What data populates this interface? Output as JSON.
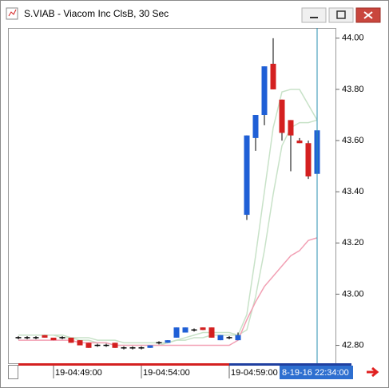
{
  "window": {
    "title": "S.VIAB - Viacom Inc ClsB, 30 Sec"
  },
  "chart_data": {
    "type": "candlestick",
    "categories": [
      null,
      null,
      null,
      null,
      "19-04:49:00",
      null,
      null,
      null,
      null,
      null,
      null,
      null,
      null,
      null,
      "19-04:54:00",
      null,
      null,
      null,
      null,
      null,
      null,
      null,
      null,
      null,
      "19-04:59:00",
      null,
      null,
      null,
      null,
      null,
      null,
      null,
      null,
      null,
      null
    ],
    "cursor_label": "8-19-16 22:34:00",
    "up_color": "#1f5fd6",
    "down_color": "#d42020",
    "flat_color": "#000000",
    "cursor_color": "#2a8fb0",
    "open": [
      42.83,
      42.83,
      42.83,
      42.84,
      42.83,
      42.83,
      42.83,
      42.82,
      42.81,
      42.8,
      42.8,
      42.81,
      42.79,
      42.79,
      42.79,
      42.79,
      42.81,
      42.81,
      42.83,
      42.85,
      42.86,
      42.87,
      42.87,
      42.82,
      42.83,
      42.82,
      43.31,
      43.61,
      43.7,
      43.9,
      43.76,
      43.68,
      43.6,
      43.59,
      43.47
    ],
    "high": [
      42.83,
      42.83,
      42.83,
      42.84,
      42.83,
      42.83,
      42.83,
      42.82,
      42.81,
      42.8,
      42.8,
      42.81,
      42.79,
      42.79,
      42.79,
      42.8,
      42.81,
      42.82,
      42.87,
      42.87,
      42.86,
      42.87,
      42.87,
      42.84,
      42.83,
      42.85,
      43.62,
      43.7,
      43.89,
      44.0,
      43.76,
      43.68,
      43.61,
      43.6,
      43.64
    ],
    "low": [
      42.83,
      42.83,
      42.83,
      42.83,
      42.82,
      42.83,
      42.81,
      42.8,
      42.79,
      42.8,
      42.8,
      42.79,
      42.79,
      42.79,
      42.79,
      42.79,
      42.81,
      42.81,
      42.83,
      42.85,
      42.86,
      42.86,
      42.83,
      42.82,
      42.83,
      42.82,
      43.29,
      43.56,
      43.66,
      43.8,
      43.6,
      43.48,
      43.59,
      43.45,
      43.45
    ],
    "close": [
      42.83,
      42.83,
      42.83,
      42.83,
      42.82,
      42.83,
      42.81,
      42.8,
      42.79,
      42.8,
      42.8,
      42.79,
      42.79,
      42.79,
      42.79,
      42.8,
      42.81,
      42.82,
      42.87,
      42.87,
      42.86,
      42.86,
      42.83,
      42.84,
      42.83,
      42.84,
      43.62,
      43.7,
      43.89,
      43.8,
      43.63,
      43.62,
      43.59,
      43.46,
      43.64
    ],
    "overlays": [
      {
        "color": "#c8e2c8",
        "values": [
          42.84,
          42.84,
          42.84,
          42.84,
          42.84,
          42.83,
          42.83,
          42.82,
          42.82,
          42.81,
          42.81,
          42.8,
          42.8,
          42.8,
          42.8,
          42.8,
          42.8,
          42.81,
          42.82,
          42.83,
          42.84,
          42.85,
          42.85,
          42.85,
          42.85,
          42.84,
          42.92,
          43.15,
          43.4,
          43.65,
          43.79,
          43.8,
          43.8,
          43.74,
          43.68
        ]
      },
      {
        "color": "#c8e2c8",
        "values": [
          42.84,
          42.84,
          42.84,
          42.84,
          42.84,
          42.84,
          42.83,
          42.83,
          42.83,
          42.82,
          42.82,
          42.82,
          42.81,
          42.81,
          42.81,
          42.81,
          42.81,
          42.81,
          42.82,
          42.82,
          42.83,
          42.83,
          42.84,
          42.84,
          42.84,
          42.84,
          42.86,
          42.99,
          43.17,
          43.39,
          43.58,
          43.65,
          43.67,
          43.67,
          43.68
        ]
      },
      {
        "color": "#f2a0b4",
        "values": [
          42.82,
          42.82,
          42.82,
          42.82,
          42.82,
          42.82,
          42.82,
          42.81,
          42.81,
          42.81,
          42.81,
          42.8,
          42.8,
          42.8,
          42.8,
          42.8,
          42.8,
          42.8,
          42.8,
          42.8,
          42.8,
          42.8,
          42.8,
          42.8,
          42.8,
          42.82,
          42.9,
          42.97,
          43.03,
          43.07,
          43.11,
          43.15,
          43.17,
          43.21,
          43.22
        ]
      }
    ],
    "ylim": [
      42.73,
      44.04
    ],
    "yticks": [
      {
        "value": 42.8,
        "label": "42.80"
      },
      {
        "value": 43.0,
        "label": "43.00"
      },
      {
        "value": 43.2,
        "label": "43.20"
      },
      {
        "value": 43.4,
        "label": "43.40"
      },
      {
        "value": 43.6,
        "label": "43.60"
      },
      {
        "value": 43.8,
        "label": "43.80"
      },
      {
        "value": 44.0,
        "label": "44.00"
      }
    ]
  }
}
